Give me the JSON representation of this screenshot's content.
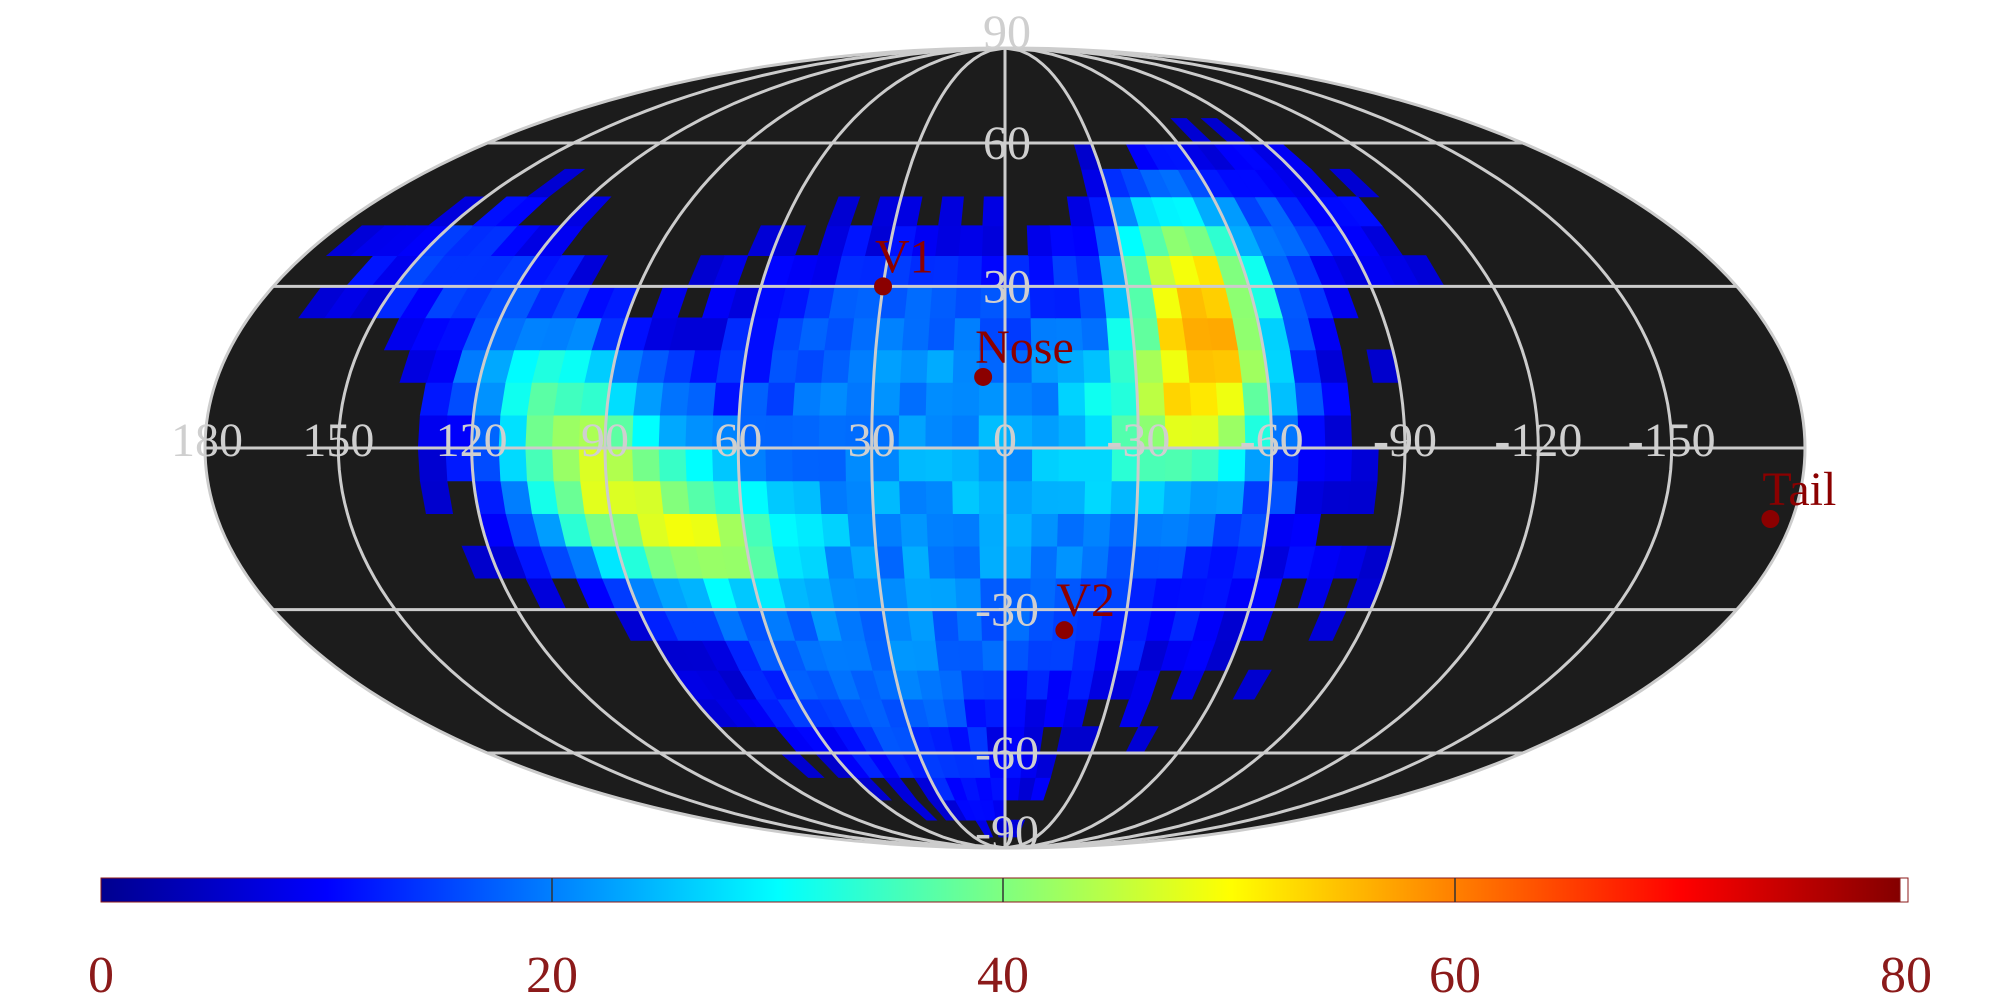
{
  "projection": "mollweide",
  "colors": {
    "background": "#ffffff",
    "map_fill": "#1c1c1c",
    "grid": "#cccccc",
    "marker": "#8b0000",
    "colorbar_labels": "#8b1a1a"
  },
  "colormap": "jet",
  "color_range": [
    0,
    80
  ],
  "longitude_labels": [
    "180",
    "150",
    "120",
    "90",
    "60",
    "30",
    "0",
    "-30",
    "-60",
    "-90",
    "-120",
    "-150"
  ],
  "latitude_labels": [
    "90",
    "60",
    "30",
    "-30",
    "-60",
    "-90"
  ],
  "markers": [
    {
      "label": "V1",
      "lon": 30,
      "lat": 30
    },
    {
      "label": "Nose",
      "lon": 5,
      "lat": 13
    },
    {
      "label": "V2",
      "lon": -15,
      "lat": -34
    },
    {
      "label": "Tail",
      "lon": -175,
      "lat": -13
    }
  ],
  "colorbar": {
    "ticks": [
      "0",
      "20",
      "40",
      "60",
      "80"
    ]
  },
  "chart_data": {
    "type": "heatmap",
    "x_label_values": [
      180,
      150,
      120,
      90,
      60,
      30,
      0,
      -30,
      -60,
      -90,
      -120,
      -150
    ],
    "y_label_values": [
      90,
      60,
      30,
      -30,
      -60,
      -90
    ],
    "value_range": [
      0,
      80
    ],
    "hotspots": [
      {
        "lon": 95,
        "lat": -3,
        "value": 58
      },
      {
        "lon": 70,
        "lat": -17,
        "value": 50
      },
      {
        "lon": -48,
        "lat": 18,
        "value": 56
      },
      {
        "lon": -45,
        "lat": 33,
        "value": 44
      },
      {
        "lon": 10,
        "lat": -15,
        "value": 30
      }
    ]
  }
}
